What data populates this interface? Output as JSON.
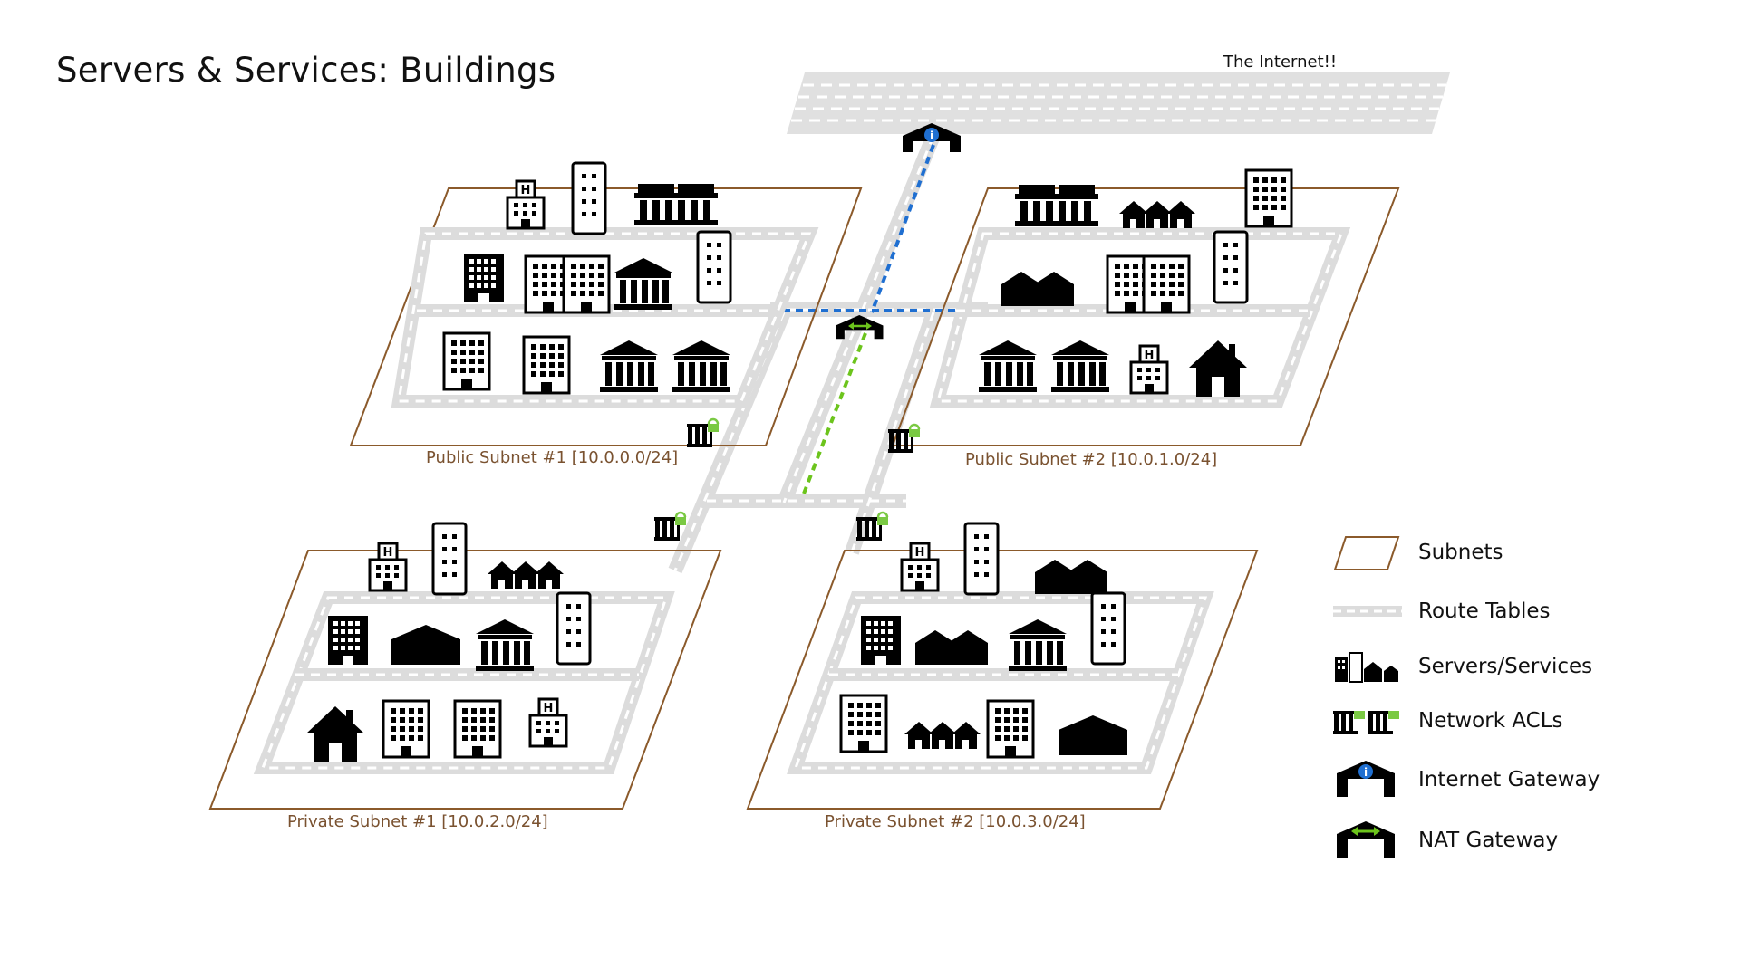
{
  "title": "Servers & Services: Buildings",
  "internet_label": "The Internet!!",
  "subnets": [
    {
      "id": "public-1",
      "label": "Public Subnet #1 [10.0.0.0/24]"
    },
    {
      "id": "public-2",
      "label": "Public Subnet #2 [10.0.1.0/24]"
    },
    {
      "id": "private-1",
      "label": "Private Subnet #1 [10.0.2.0/24]"
    },
    {
      "id": "private-2",
      "label": "Private Subnet #2 [10.0.3.0/24]"
    }
  ],
  "gateways": {
    "internet": {
      "icon": "internet-gateway-icon"
    },
    "nat": {
      "icon": "nat-gateway-icon"
    }
  },
  "legend": [
    {
      "icon": "subnet-icon",
      "label": "Subnets"
    },
    {
      "icon": "route-table-icon",
      "label": "Route Tables"
    },
    {
      "icon": "buildings-icon",
      "label": "Servers/Services"
    },
    {
      "icon": "network-acl-icon",
      "label": "Network ACLs"
    },
    {
      "icon": "internet-gateway-icon",
      "label": "Internet Gateway"
    },
    {
      "icon": "nat-gateway-icon",
      "label": "NAT Gateway"
    }
  ],
  "colors": {
    "subnet_border": "#8b5a2b",
    "road": "#d9d9d9",
    "internet_link": "#1f6fd1",
    "nat_link": "#6cc41c",
    "lock": "#7ac943"
  }
}
